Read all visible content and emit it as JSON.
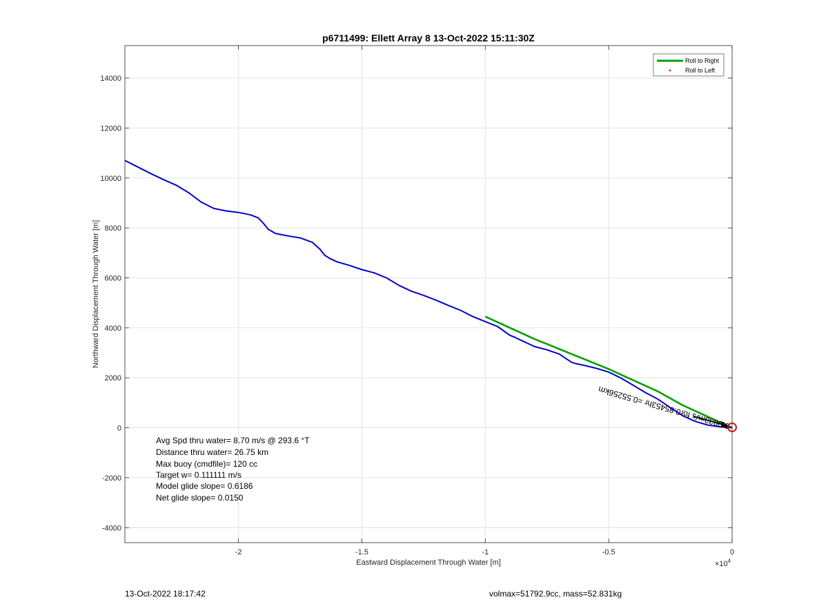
{
  "chart_data": {
    "type": "line",
    "title": "p6711499: Ellett Array 8 13-Oct-2022 15:11:30Z",
    "xlabel": "Eastward Displacement Through Water [m]",
    "ylabel": "Northward Displacement Through Water [m]",
    "x_exponent_label": "×10",
    "x_exponent_power": "4",
    "xlim": [
      -24600,
      0
    ],
    "ylim": [
      -4600,
      15300
    ],
    "x_ticks": [
      -20000,
      -15000,
      -10000,
      -5000,
      0
    ],
    "x_tick_labels": [
      "-2",
      "-1.5",
      "-1",
      "-0.5",
      "0"
    ],
    "y_ticks": [
      -4000,
      -2000,
      0,
      2000,
      4000,
      6000,
      8000,
      10000,
      12000,
      14000
    ],
    "y_tick_labels": [
      "-4000",
      "-2000",
      "0",
      "2000",
      "4000",
      "6000",
      "8000",
      "10000",
      "12000",
      "14000"
    ],
    "grid": true,
    "legend_position": "top-right",
    "series": [
      {
        "name": "Roll to Right",
        "color": "#00a000",
        "x": [
          -10000,
          -9000,
          -8000,
          -7000,
          -6000,
          -5000,
          -4000,
          -3000,
          -2000,
          -1000,
          0
        ],
        "y": [
          4450,
          4000,
          3550,
          3150,
          2750,
          2350,
          1900,
          1450,
          900,
          450,
          0
        ]
      },
      {
        "name": "Roll to Left",
        "color": "#ff0000",
        "x": [],
        "y": []
      },
      {
        "name": "",
        "color": "#0000cc",
        "x": [
          -24600,
          -24000,
          -23500,
          -23000,
          -22500,
          -22000,
          -21500,
          -21000,
          -20500,
          -20000,
          -19500,
          -19200,
          -19000,
          -18800,
          -18500,
          -18000,
          -17500,
          -17000,
          -16700,
          -16500,
          -16300,
          -16000,
          -15500,
          -15000,
          -14500,
          -14000,
          -13500,
          -13000,
          -12500,
          -12000,
          -11500,
          -11000,
          -10500,
          -10000,
          -9500,
          -9000,
          -8800,
          -8500,
          -8000,
          -7500,
          -7000,
          -6700,
          -6500,
          -6300,
          -6000,
          -5500,
          -5000,
          -4500,
          -4000,
          -3500,
          -3000,
          -2500,
          -2000,
          -1500,
          -1000,
          -500,
          0
        ],
        "y": [
          10700,
          10400,
          10150,
          9920,
          9700,
          9400,
          9030,
          8780,
          8680,
          8620,
          8520,
          8400,
          8200,
          7950,
          7780,
          7680,
          7600,
          7420,
          7150,
          6900,
          6780,
          6640,
          6500,
          6330,
          6200,
          6000,
          5700,
          5470,
          5300,
          5110,
          4900,
          4700,
          4450,
          4250,
          4050,
          3700,
          3620,
          3480,
          3250,
          3120,
          2950,
          2750,
          2620,
          2560,
          2500,
          2380,
          2230,
          1990,
          1700,
          1400,
          1140,
          800,
          480,
          260,
          110,
          40,
          0
        ]
      }
    ],
    "annotations": {
      "stats": [
        "Avg Spd thru water=  8.70 m/s @ 293.6 °T",
        "Distance thru water= 26.75 km",
        "Max buoy (cmdfile)= 120 cc",
        "Target w= 0.111111 m/s",
        "Model glide slope= 0.6186",
        "Net glide slope= 0.0150"
      ],
      "current_label": "0.0833m/s for0.85453hr =0.55256km"
    }
  },
  "footer": {
    "left": "13-Oct-2022 18:17:42",
    "right": "volmax=51792.9cc, mass=52.831kg"
  }
}
